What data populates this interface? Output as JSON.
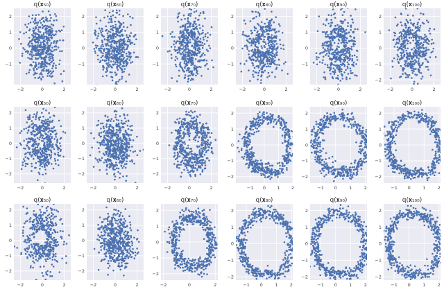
{
  "figure": {
    "rows": 3,
    "cols": 6,
    "colors": {
      "plot_bg": "#eaeaf2",
      "grid": "#ffffff",
      "point": "#4c72b0"
    }
  },
  "chart_data": [
    {
      "type": "scatter",
      "row": 0,
      "col": 0,
      "title": "q(x50)",
      "title_display": "q(𝐱₅₀)",
      "shape": "blob",
      "hole": 0.05,
      "xlim": [
        -2.6,
        2.6
      ],
      "ylim": [
        -2.3,
        2.5
      ],
      "xticks": [
        -2,
        0,
        2
      ],
      "yticks": [
        -1,
        0,
        1,
        2
      ],
      "xtick_labels": [
        "−2",
        "0",
        "2"
      ],
      "ytick_labels": [
        "−1",
        "0",
        "1",
        "2"
      ],
      "grid": true
    },
    {
      "type": "scatter",
      "row": 0,
      "col": 1,
      "title": "q(x60)",
      "title_display": "q(𝐱₆₀)",
      "shape": "blob",
      "hole": 0.08,
      "xlim": [
        -2.6,
        2.6
      ],
      "ylim": [
        -2.3,
        2.5
      ],
      "xticks": [
        -2,
        0,
        2
      ],
      "yticks": [
        -1,
        0,
        1,
        2
      ],
      "xtick_labels": [
        "−2",
        "0",
        "2"
      ],
      "ytick_labels": [
        "−1",
        "0",
        "1",
        "2"
      ],
      "grid": true
    },
    {
      "type": "scatter",
      "row": 0,
      "col": 2,
      "title": "q(x70)",
      "title_display": "q(𝐱₇₀)",
      "shape": "blob",
      "hole": 0.1,
      "xlim": [
        -2.6,
        2.6
      ],
      "ylim": [
        -2.3,
        2.5
      ],
      "xticks": [
        -2,
        0,
        2
      ],
      "yticks": [
        -1,
        0,
        1,
        2
      ],
      "xtick_labels": [
        "−2",
        "0",
        "2"
      ],
      "ytick_labels": [
        "−1",
        "0",
        "1",
        "2"
      ],
      "grid": true
    },
    {
      "type": "scatter",
      "row": 0,
      "col": 3,
      "title": "q(x80)",
      "title_display": "q(𝐱₈₀)",
      "shape": "blob",
      "hole": 0.12,
      "xlim": [
        -2.6,
        2.6
      ],
      "ylim": [
        -2.3,
        2.5
      ],
      "xticks": [
        -2,
        0,
        2
      ],
      "yticks": [
        -1,
        0,
        1,
        2
      ],
      "xtick_labels": [
        "−2",
        "0",
        "2"
      ],
      "ytick_labels": [
        "−1",
        "0",
        "1",
        "2"
      ],
      "grid": true
    },
    {
      "type": "scatter",
      "row": 0,
      "col": 4,
      "title": "q(x90)",
      "title_display": "q(𝐱₉₀)",
      "shape": "blob",
      "hole": 0.12,
      "xlim": [
        -2.6,
        2.6
      ],
      "ylim": [
        -2.3,
        2.5
      ],
      "xticks": [
        -2,
        0,
        2
      ],
      "yticks": [
        -1,
        0,
        1,
        2
      ],
      "xtick_labels": [
        "−2",
        "0",
        "2"
      ],
      "ytick_labels": [
        "−1",
        "0",
        "1",
        "2"
      ],
      "grid": true
    },
    {
      "type": "scatter",
      "row": 0,
      "col": 5,
      "title": "q(x100)",
      "title_display": "q(𝐱₁₀₀)",
      "shape": "blob",
      "hole": 0.14,
      "xlim": [
        -2.6,
        2.6
      ],
      "ylim": [
        -2.3,
        2.5
      ],
      "xticks": [
        -2,
        0,
        2
      ],
      "yticks": [
        -2,
        -1,
        0,
        1,
        2
      ],
      "xtick_labels": [
        "−2",
        "0",
        "2"
      ],
      "ytick_labels": [
        "−2",
        "−1",
        "0",
        "1",
        "2"
      ],
      "grid": true
    },
    {
      "type": "scatter",
      "row": 1,
      "col": 0,
      "title": "q(x50)",
      "title_display": "q(𝐱₅₀)",
      "shape": "blob",
      "hole": 0.12,
      "xlim": [
        -2.6,
        2.6
      ],
      "ylim": [
        -2.6,
        2.4
      ],
      "xticks": [
        -2,
        0,
        2
      ],
      "yticks": [
        -2,
        -1,
        0,
        1,
        2
      ],
      "xtick_labels": [
        "−2",
        "0",
        "2"
      ],
      "ytick_labels": [
        "−2",
        "−1",
        "0",
        "1",
        "2"
      ],
      "grid": true
    },
    {
      "type": "scatter",
      "row": 1,
      "col": 1,
      "title": "q(x60)",
      "title_display": "q(𝐱₆₀)",
      "shape": "swirl",
      "t": 0.35,
      "xlim": [
        -2.6,
        2.6
      ],
      "ylim": [
        -2.6,
        2.4
      ],
      "xticks": [
        -2,
        0,
        2
      ],
      "yticks": [
        -2,
        -1,
        0,
        1,
        2
      ],
      "xtick_labels": [
        "−2",
        "0",
        "2"
      ],
      "ytick_labels": [
        "−2",
        "−1",
        "0",
        "1",
        "2"
      ],
      "grid": true
    },
    {
      "type": "scatter",
      "row": 1,
      "col": 2,
      "title": "q(x70)",
      "title_display": "q(𝐱₇₀)",
      "shape": "swirl",
      "t": 0.7,
      "xlim": [
        -2.6,
        2.6
      ],
      "ylim": [
        -2.6,
        2.4
      ],
      "xticks": [
        -2,
        0,
        2
      ],
      "yticks": [
        -2,
        -1,
        0,
        1,
        2
      ],
      "xtick_labels": [
        "−2",
        "0",
        "2"
      ],
      "ytick_labels": [
        "−2",
        "−1",
        "0",
        "1",
        "2"
      ],
      "grid": true
    },
    {
      "type": "scatter",
      "row": 1,
      "col": 3,
      "title": "q(x80)",
      "title_display": "q(𝐱₈₀)",
      "shape": "swirl",
      "t": 0.9,
      "xlim": [
        -2.0,
        2.0
      ],
      "ylim": [
        -2.4,
        2.4
      ],
      "xticks": [
        -1,
        0,
        1,
        2
      ],
      "yticks": [
        -2,
        -1,
        0,
        1,
        2
      ],
      "xtick_labels": [
        "−1",
        "0",
        "1",
        "2"
      ],
      "ytick_labels": [
        "−2",
        "−1",
        "0",
        "1",
        "2"
      ],
      "grid": true
    },
    {
      "type": "scatter",
      "row": 1,
      "col": 4,
      "title": "q(x90)",
      "title_display": "q(𝐱₉₀)",
      "shape": "swirl",
      "t": 0.95,
      "xlim": [
        -1.7,
        2.1
      ],
      "ylim": [
        -2.4,
        2.4
      ],
      "xticks": [
        -1,
        0,
        1,
        2
      ],
      "yticks": [
        -2,
        -1,
        0,
        1,
        2
      ],
      "xtick_labels": [
        "−1",
        "0",
        "1",
        "2"
      ],
      "ytick_labels": [
        "−2",
        "−1",
        "0",
        "1",
        "2"
      ],
      "grid": true
    },
    {
      "type": "scatter",
      "row": 1,
      "col": 5,
      "title": "q(x100)",
      "title_display": "q(𝐱₁₀₀)",
      "shape": "swirl",
      "t": 1.0,
      "xlim": [
        -1.7,
        2.1
      ],
      "ylim": [
        -2.4,
        2.4
      ],
      "xticks": [
        -1,
        0,
        1,
        2
      ],
      "yticks": [
        -2,
        -1,
        0,
        1,
        2
      ],
      "xtick_labels": [
        "−1",
        "0",
        "1",
        "2"
      ],
      "ytick_labels": [
        "−2",
        "−1",
        "0",
        "1",
        "2"
      ],
      "grid": true
    },
    {
      "type": "scatter",
      "row": 2,
      "col": 0,
      "title": "q(x50)",
      "title_display": "q(𝐱₅₀)",
      "shape": "blob",
      "hole": 0.2,
      "xlim": [
        -2.6,
        2.6
      ],
      "ylim": [
        -2.6,
        2.4
      ],
      "xticks": [
        -2,
        0,
        2
      ],
      "yticks": [
        -2,
        -1,
        0,
        1,
        2
      ],
      "xtick_labels": [
        "−2",
        "0",
        "2"
      ],
      "ytick_labels": [
        "−2",
        "−1",
        "0",
        "1",
        "2"
      ],
      "grid": true
    },
    {
      "type": "scatter",
      "row": 2,
      "col": 1,
      "title": "q(x60)",
      "title_display": "q(𝐱₆₀)",
      "shape": "swirl",
      "t": 0.45,
      "xlim": [
        -2.6,
        2.6
      ],
      "ylim": [
        -2.6,
        2.4
      ],
      "xticks": [
        -2,
        0,
        2
      ],
      "yticks": [
        -2,
        -1,
        0,
        1,
        2
      ],
      "xtick_labels": [
        "−2",
        "0",
        "2"
      ],
      "ytick_labels": [
        "−2",
        "−1",
        "0",
        "1",
        "2"
      ],
      "grid": true
    },
    {
      "type": "scatter",
      "row": 2,
      "col": 2,
      "title": "q(x70)",
      "title_display": "q(𝐱₇₀)",
      "shape": "swirl",
      "t": 0.85,
      "xlim": [
        -2.2,
        2.2
      ],
      "ylim": [
        -2.4,
        2.4
      ],
      "xticks": [
        -2,
        0,
        2
      ],
      "yticks": [
        -2,
        -1,
        0,
        1,
        2
      ],
      "xtick_labels": [
        "−2",
        "0",
        "2"
      ],
      "ytick_labels": [
        "−2",
        "−1",
        "0",
        "1",
        "2"
      ],
      "grid": true
    },
    {
      "type": "scatter",
      "row": 2,
      "col": 3,
      "title": "q(x80)",
      "title_display": "q(𝐱₈₀)",
      "shape": "swirl",
      "t": 1.0,
      "xlim": [
        -1.7,
        2.1
      ],
      "ylim": [
        -2.2,
        2.4
      ],
      "xticks": [
        -1,
        0,
        1,
        2
      ],
      "yticks": [
        -2,
        -1,
        0,
        1,
        2
      ],
      "xtick_labels": [
        "−1",
        "0",
        "1",
        "2"
      ],
      "ytick_labels": [
        "−2",
        "−1",
        "0",
        "1",
        "2"
      ],
      "grid": true
    },
    {
      "type": "scatter",
      "row": 2,
      "col": 4,
      "title": "q(x90)",
      "title_display": "q(𝐱₉₀)",
      "shape": "swirl",
      "t": 1.0,
      "xlim": [
        -1.7,
        2.1
      ],
      "ylim": [
        -2.2,
        2.4
      ],
      "xticks": [
        -1,
        0,
        1,
        2
      ],
      "yticks": [
        -2,
        -1,
        0,
        1,
        2
      ],
      "xtick_labels": [
        "−1",
        "0",
        "1",
        "2"
      ],
      "ytick_labels": [
        "−2",
        "−1",
        "0",
        "1",
        "2"
      ],
      "grid": true
    },
    {
      "type": "scatter",
      "row": 2,
      "col": 5,
      "title": "q(x100)",
      "title_display": "q(𝐱₁₀₀)",
      "shape": "swirl",
      "t": 1.0,
      "xlim": [
        -1.7,
        2.1
      ],
      "ylim": [
        -2.2,
        2.4
      ],
      "xticks": [
        -1,
        0,
        1,
        2
      ],
      "yticks": [
        -2,
        -1,
        0,
        1,
        2
      ],
      "xtick_labels": [
        "−1",
        "0",
        "1",
        "2"
      ],
      "ytick_labels": [
        "−2",
        "−1",
        "0",
        "1",
        "2"
      ],
      "grid": true
    }
  ]
}
